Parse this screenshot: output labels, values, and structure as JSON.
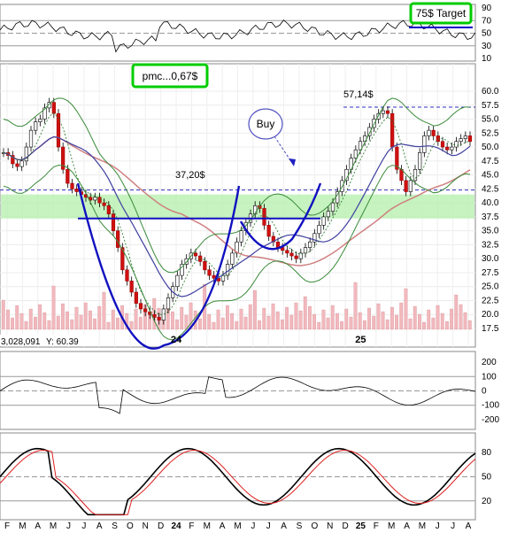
{
  "chart_data": {
    "type": "candlestick",
    "annotations": {
      "target": "75$ Target",
      "pmc": "pmc...0,67$",
      "buy": "Buy",
      "high_label": "57,14$",
      "neckline_label": "37,20$",
      "volume_readout": "3,028,091",
      "y_readout": "Y: 60.39"
    },
    "months": [
      "F",
      "M",
      "A",
      "M",
      "J",
      "J",
      "A",
      "S",
      "O",
      "N",
      "D",
      "24",
      "F",
      "M",
      "A",
      "M",
      "J",
      "J",
      "A",
      "S",
      "O",
      "N",
      "D",
      "25",
      "F",
      "M",
      "A",
      "M",
      "J",
      "J",
      "A"
    ],
    "year_labels": [
      "24",
      "25"
    ],
    "price_axis": {
      "ticks": [
        "60.0",
        "57.5",
        "55.0",
        "52.5",
        "50.0",
        "47.5",
        "45.0",
        "42.5",
        "40.0",
        "37.5",
        "35.0",
        "32.5",
        "30.0",
        "27.5",
        "25.0",
        "22.5",
        "20.0",
        "17.5"
      ],
      "range": [
        16.8,
        61.5
      ]
    },
    "rsi_axis": {
      "ticks": [
        "90",
        "70",
        "50",
        "30",
        "10"
      ]
    },
    "cci_axis": {
      "ticks": [
        "200",
        "100",
        "0",
        "-100",
        "-200"
      ]
    },
    "stoch_axis": {
      "ticks": [
        "80",
        "50",
        "20"
      ]
    },
    "levels": {
      "neckline": 37.2,
      "high": 57.14,
      "dashed_support": 42.3
    },
    "price_close": [
      49,
      48.5,
      47,
      46.5,
      47.5,
      50,
      53,
      54.5,
      55,
      57,
      58,
      56,
      50,
      46,
      43.5,
      42.5,
      42,
      41.5,
      41,
      40.5,
      41,
      40,
      39.5,
      38,
      35,
      32,
      28,
      26,
      24,
      22,
      21,
      20.5,
      20,
      19.5,
      19,
      21,
      23,
      25,
      27,
      29,
      30,
      31,
      30.5,
      29.5,
      28,
      27,
      26.5,
      26,
      27,
      29,
      31,
      33,
      35,
      36.5,
      38,
      39.5,
      39,
      36,
      34,
      33,
      32,
      31.5,
      31,
      30.5,
      30,
      31,
      32,
      33,
      34.5,
      36,
      37.5,
      38.5,
      40,
      42,
      44,
      46,
      48,
      49.5,
      51,
      52,
      53.5,
      55,
      56,
      56.5,
      56,
      50,
      46,
      44,
      42,
      44,
      46,
      49,
      52,
      53,
      52,
      51,
      50,
      49.5,
      50,
      51,
      51.5,
      52,
      51
    ]
  }
}
